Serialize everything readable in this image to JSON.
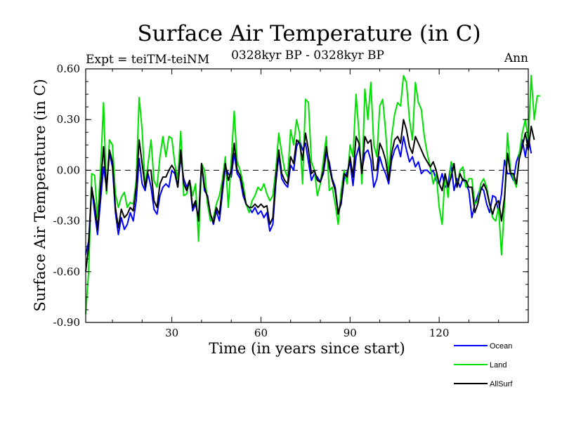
{
  "chart_data": {
    "type": "line",
    "title": "Surface Air Temperature (in C)",
    "subtitle": "0328kyr BP - 0328kyr BP",
    "left_annotation": "Expt = teiTM-teiNM",
    "right_annotation": "Ann",
    "xlabel": "Time (in years since start)",
    "ylabel": "Surface Air Temperature (in C)",
    "xlim": [
      1,
      150
    ],
    "ylim": [
      -0.9,
      0.6
    ],
    "xticks": [
      30,
      60,
      90,
      120
    ],
    "xtick_labels": [
      "30",
      "60",
      "90",
      "120"
    ],
    "yticks": [
      -0.9,
      -0.6,
      -0.3,
      0.0,
      0.3,
      0.6
    ],
    "ytick_labels": [
      "-0.90",
      "-0.60",
      "-0.30",
      "0.00",
      "0.30",
      "0.60"
    ],
    "reference_line": 0.0,
    "legend_position": "bottom-right",
    "series": [
      {
        "name": "Ocean",
        "color": "#0000ff",
        "values": [
          -0.5,
          -0.42,
          -0.1,
          -0.25,
          -0.38,
          -0.18,
          0.02,
          -0.1,
          0.1,
          0.02,
          -0.25,
          -0.38,
          -0.28,
          -0.35,
          -0.32,
          -0.25,
          -0.3,
          -0.18,
          0.07,
          -0.08,
          -0.12,
          -0.02,
          -0.1,
          -0.23,
          -0.26,
          -0.15,
          -0.1,
          -0.08,
          -0.1,
          0.0,
          -0.02,
          -0.1,
          0.08,
          -0.05,
          -0.1,
          -0.06,
          -0.24,
          -0.2,
          -0.28,
          0.04,
          -0.12,
          -0.15,
          -0.26,
          -0.32,
          -0.24,
          -0.3,
          -0.14,
          0.02,
          -0.02,
          -0.04,
          0.1,
          -0.02,
          -0.05,
          -0.15,
          -0.2,
          -0.22,
          -0.25,
          -0.22,
          -0.26,
          -0.24,
          -0.28,
          -0.25,
          -0.36,
          -0.32,
          -0.08,
          0.09,
          -0.05,
          -0.08,
          -0.1,
          0.03,
          0.0,
          0.14,
          0.18,
          0.12,
          0.16,
          0.05,
          -0.06,
          -0.02,
          -0.04,
          -0.07,
          -0.02,
          0.1,
          0.05,
          -0.05,
          -0.1,
          -0.25,
          -0.2,
          -0.05,
          -0.01,
          0.05,
          -0.09,
          0.08,
          0.14,
          0.0,
          0.1,
          0.12,
          0.06,
          -0.1,
          -0.05,
          0.08,
          0.02,
          -0.02,
          -0.08,
          0.06,
          0.12,
          0.15,
          0.08,
          0.2,
          0.12,
          0.05,
          0.08,
          0.02,
          0.05,
          -0.02,
          0.0,
          0.0,
          -0.02,
          0.0,
          -0.06,
          -0.08,
          -0.02,
          -0.1,
          -0.08,
          0.04,
          -0.12,
          -0.05,
          -0.1,
          -0.05,
          -0.08,
          -0.12,
          -0.28,
          -0.2,
          -0.15,
          -0.1,
          -0.12,
          -0.2,
          -0.25,
          -0.15,
          -0.16,
          -0.25,
          -0.14,
          0.06,
          -0.02,
          -0.02,
          -0.06,
          0.05,
          0.1,
          0.18,
          0.08,
          0.2,
          0.1
        ]
      },
      {
        "name": "Land",
        "color": "#00e000",
        "values": [
          -0.85,
          -0.6,
          -0.02,
          -0.03,
          -0.28,
          0.0,
          0.4,
          -0.14,
          0.18,
          0.15,
          -0.14,
          -0.22,
          -0.16,
          -0.13,
          -0.22,
          -0.19,
          -0.2,
          -0.06,
          0.43,
          0.24,
          -0.1,
          0.04,
          0.18,
          -0.06,
          -0.1,
          0.08,
          0.2,
          0.08,
          0.2,
          0.19,
          0.04,
          -0.05,
          0.23,
          -0.15,
          -0.14,
          -0.06,
          -0.15,
          -0.08,
          -0.42,
          0.04,
          0.0,
          -0.2,
          -0.3,
          -0.28,
          -0.2,
          -0.15,
          -0.06,
          0.08,
          -0.22,
          0.06,
          0.35,
          0.05,
          0.0,
          -0.08,
          -0.2,
          -0.25,
          -0.18,
          -0.15,
          -0.1,
          -0.12,
          -0.08,
          -0.14,
          -0.18,
          -0.15,
          0.0,
          0.22,
          0.1,
          0.0,
          -0.04,
          0.24,
          0.15,
          0.3,
          0.22,
          -0.08,
          0.42,
          0.4,
          0.05,
          0.0,
          -0.15,
          -0.08,
          0.06,
          0.2,
          -0.12,
          -0.1,
          -0.2,
          -0.32,
          -0.12,
          0.0,
          -0.08,
          0.15,
          0.08,
          0.45,
          0.22,
          -0.08,
          0.48,
          0.3,
          0.52,
          0.15,
          0.08,
          0.38,
          0.42,
          0.23,
          -0.04,
          0.2,
          0.33,
          0.4,
          0.38,
          0.56,
          0.52,
          0.3,
          0.18,
          0.52,
          0.4,
          0.36,
          0.2,
          0.1,
          0.02,
          -0.08,
          -0.02,
          -0.22,
          -0.32,
          -0.02,
          -0.16,
          0.05,
          0.02,
          -0.1,
          0.0,
          0.02,
          -0.1,
          -0.05,
          -0.05,
          -0.2,
          -0.18,
          -0.08,
          -0.05,
          -0.1,
          -0.2,
          -0.28,
          -0.3,
          -0.22,
          -0.5,
          -0.2,
          0.22,
          0.0,
          -0.05,
          -0.1,
          0.1,
          0.22,
          0.3,
          0.18,
          0.56,
          0.3,
          0.44,
          0.44
        ]
      },
      {
        "name": "AllSurf",
        "color": "#000000",
        "values": [
          -0.6,
          -0.45,
          -0.1,
          -0.2,
          -0.35,
          -0.1,
          0.14,
          -0.12,
          0.12,
          0.05,
          -0.22,
          -0.34,
          -0.23,
          -0.28,
          -0.26,
          -0.22,
          -0.24,
          -0.1,
          0.18,
          0.04,
          -0.1,
          0.0,
          0.0,
          -0.18,
          -0.22,
          -0.08,
          -0.04,
          -0.04,
          0.0,
          0.03,
          0.0,
          -0.1,
          0.12,
          -0.08,
          -0.12,
          -0.06,
          -0.22,
          -0.18,
          -0.3,
          0.04,
          -0.1,
          -0.16,
          -0.26,
          -0.31,
          -0.22,
          -0.26,
          -0.1,
          0.04,
          -0.06,
          0.0,
          0.16,
          0.0,
          -0.03,
          -0.12,
          -0.2,
          -0.22,
          -0.22,
          -0.2,
          -0.22,
          -0.2,
          -0.22,
          -0.21,
          -0.32,
          -0.28,
          -0.04,
          0.12,
          -0.02,
          -0.06,
          -0.08,
          0.08,
          0.04,
          0.18,
          0.16,
          0.06,
          0.22,
          0.12,
          -0.02,
          0.0,
          -0.06,
          -0.07,
          0.0,
          0.14,
          0.02,
          -0.06,
          -0.12,
          -0.26,
          -0.18,
          -0.02,
          -0.04,
          0.08,
          -0.04,
          0.2,
          0.16,
          -0.02,
          0.2,
          0.16,
          0.18,
          0.0,
          0.0,
          0.16,
          0.12,
          0.06,
          -0.06,
          0.1,
          0.18,
          0.2,
          0.16,
          0.3,
          0.24,
          0.14,
          0.1,
          0.2,
          0.16,
          0.12,
          0.08,
          0.05,
          0.02,
          0.05,
          0.0,
          -0.08,
          -0.12,
          -0.02,
          -0.1,
          -0.04,
          0.04,
          -0.1,
          -0.02,
          -0.06,
          -0.06,
          -0.1,
          -0.1,
          -0.25,
          -0.2,
          -0.12,
          -0.08,
          -0.12,
          -0.2,
          -0.26,
          -0.2,
          -0.18,
          -0.3,
          -0.16,
          0.1,
          -0.02,
          -0.02,
          -0.08,
          0.07,
          0.14,
          0.22,
          0.12,
          0.26,
          0.18
        ]
      }
    ]
  }
}
